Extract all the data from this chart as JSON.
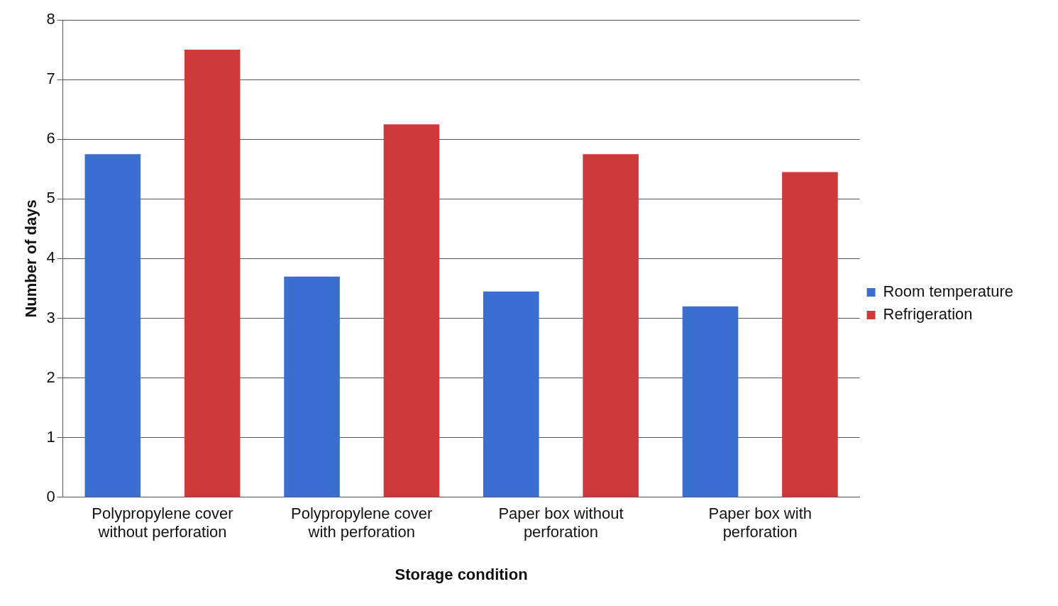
{
  "chart_data": {
    "type": "bar",
    "xlabel": "Storage condition",
    "ylabel": "Number of days",
    "categories": [
      "Polypropylene cover without perforation",
      "Polypropylene cover with perforation",
      "Paper box without perforation",
      "Paper box with perforation"
    ],
    "series": [
      {
        "name": "Room temperature",
        "color": "#3a6fd0",
        "values": [
          5.75,
          3.7,
          3.45,
          3.2
        ]
      },
      {
        "name": "Refrigeration",
        "color": "#cc3a3c",
        "values": [
          7.5,
          6.25,
          5.75,
          5.45
        ]
      }
    ],
    "ylim": [
      0,
      8
    ],
    "yticks": [
      0,
      1,
      2,
      3,
      4,
      5,
      6,
      7,
      8
    ],
    "grid": "y",
    "legend": "right"
  }
}
